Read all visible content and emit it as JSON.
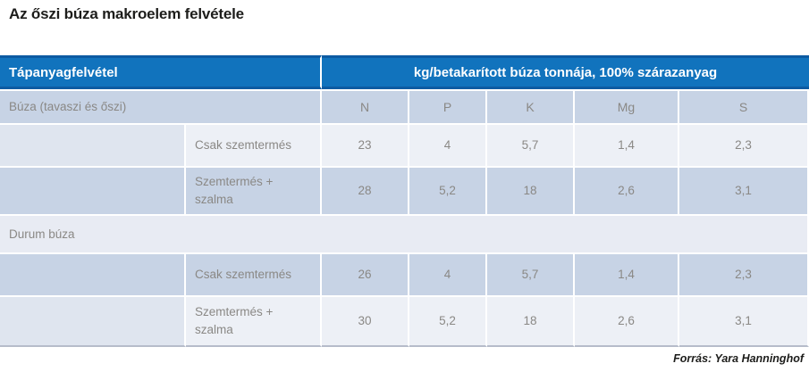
{
  "title": "Az őszi búza makroelem felvétele",
  "table": {
    "header": {
      "col1": "Tápanyagfelvétel",
      "col2": "kg/betakarított búza tonnája, 100% szárazanyag"
    },
    "columns": [
      "N",
      "P",
      "K",
      "Mg",
      "S"
    ],
    "sections": [
      {
        "label": "Búza (tavaszi és őszi)",
        "rows": [
          {
            "label": "Csak szemtermés",
            "values": [
              "23",
              "4",
              "5,7",
              "1,4",
              "2,3"
            ]
          },
          {
            "label": "Szemtermés + szalma",
            "values": [
              "28",
              "5,2",
              "18",
              "2,6",
              "3,1"
            ]
          }
        ]
      },
      {
        "label": "Durum búza",
        "rows": [
          {
            "label": "Csak szemtermés",
            "values": [
              "26",
              "4",
              "5,7",
              "1,4",
              "2,3"
            ]
          },
          {
            "label": "Szemtermés + szalma",
            "values": [
              "30",
              "5,2",
              "18",
              "2,6",
              "3,1"
            ]
          }
        ]
      }
    ]
  },
  "footer": {
    "source": "Forrás: Yara Hanninghof"
  },
  "colors": {
    "header_bg": "#1173bd",
    "header_border": "#0d5ba2",
    "header_text": "#ffffff",
    "row_blue": "#c7d3e5",
    "row_light": "#edf0f6",
    "indent_cell": "#dfe5ef",
    "section_row": "#e8ebf3",
    "body_text": "#8a8885",
    "title_text": "#1d1d1b",
    "table_bottom_border": "#b6bcca"
  }
}
